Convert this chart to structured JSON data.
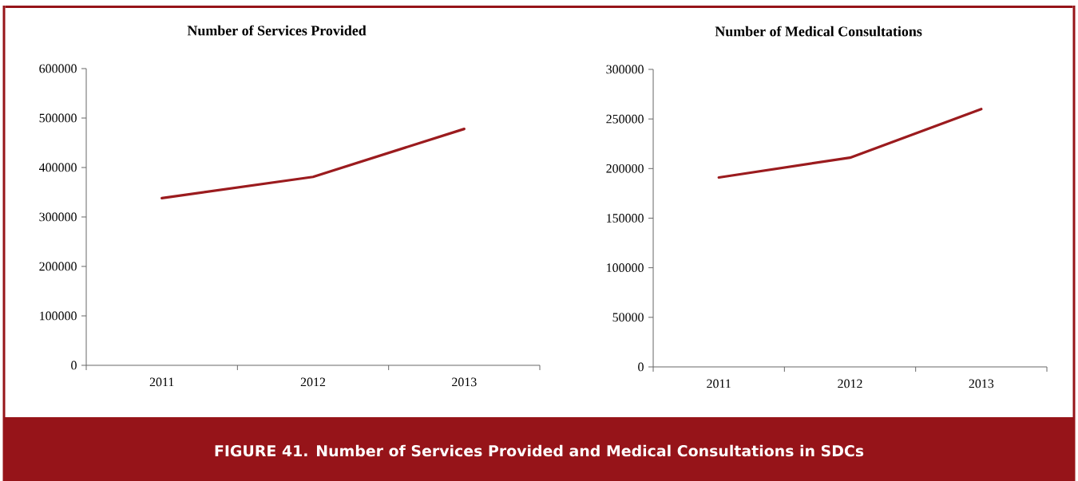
{
  "chart_data": [
    {
      "type": "line",
      "title": "Number of Services Provided",
      "categories": [
        "2011",
        "2012",
        "2013"
      ],
      "values": [
        338000,
        381000,
        478000
      ],
      "color": "#9b1b1e",
      "ylim": [
        0,
        600000
      ],
      "yticks": [
        0,
        100000,
        200000,
        300000,
        400000,
        500000,
        600000
      ],
      "annotations": [
        "FIGURE 41. Number of Services Provided and Medical Consultations in SDCs"
      ]
    },
    {
      "type": "line",
      "title": "Number of Medical Consultations",
      "categories": [
        "2011",
        "2012",
        "2013"
      ],
      "values": [
        191000,
        211000,
        260000
      ],
      "color": "#9b1b1e",
      "ylim": [
        0,
        300000
      ],
      "yticks": [
        0,
        50000,
        100000,
        150000,
        200000,
        250000,
        300000
      ]
    }
  ]
}
